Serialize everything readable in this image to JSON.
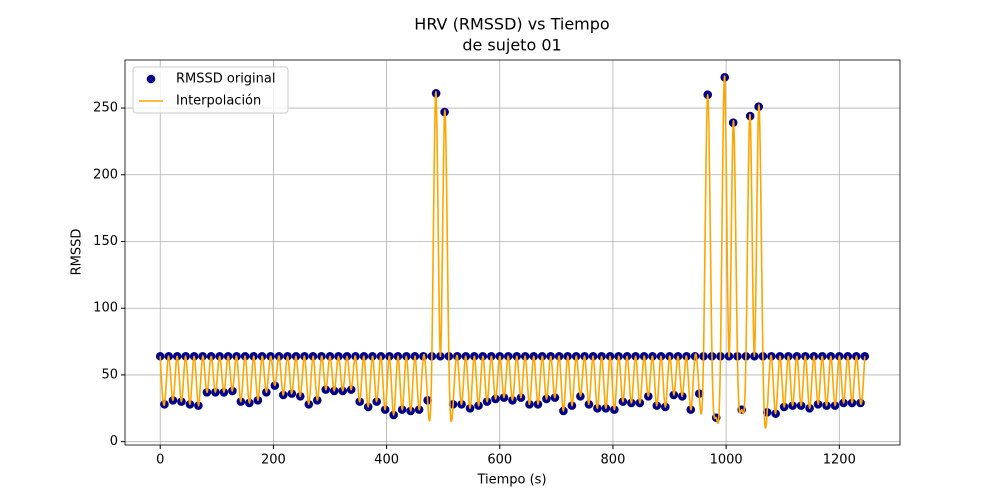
{
  "chart_data": {
    "type": "scatter-spline",
    "title": [
      "HRV (RMSSD) vs Tiempo",
      "de sujeto 01"
    ],
    "x_label": "Tiempo (s)",
    "y_label": "RMSSD",
    "x": [
      0,
      7.5,
      15,
      22.5,
      30,
      37.5,
      45,
      52.5,
      60,
      67.5,
      75,
      82.5,
      90,
      97.5,
      105,
      112.5,
      120,
      127.5,
      135,
      142.5,
      150,
      157.5,
      165,
      172.5,
      180,
      187.5,
      195,
      202.5,
      210,
      217.5,
      225,
      232.5,
      240,
      247.5,
      255,
      262.5,
      270,
      277.5,
      285,
      292.5,
      300,
      307.5,
      315,
      322.5,
      330,
      337.5,
      345,
      352.5,
      360,
      367.5,
      375,
      382.5,
      390,
      397.5,
      405,
      412.5,
      420,
      427.5,
      435,
      442.5,
      450,
      457.5,
      465,
      472.5,
      480,
      487.5,
      495,
      502.5,
      510,
      517.5,
      525,
      532.5,
      540,
      547.5,
      555,
      562.5,
      570,
      577.5,
      585,
      592.5,
      600,
      607.5,
      615,
      622.5,
      630,
      637.5,
      645,
      652.5,
      660,
      667.5,
      675,
      682.5,
      690,
      697.5,
      705,
      712.5,
      720,
      727.5,
      735,
      742.5,
      750,
      757.5,
      765,
      772.5,
      780,
      787.5,
      795,
      802.5,
      810,
      817.5,
      825,
      832.5,
      840,
      847.5,
      855,
      862.5,
      870,
      877.5,
      885,
      892.5,
      900,
      907.5,
      915,
      922.5,
      930,
      937.5,
      945,
      952.5,
      960,
      967.5,
      975,
      982.5,
      990,
      997.5,
      1005,
      1012.5,
      1020,
      1027.5,
      1035,
      1042.5,
      1050,
      1057.5,
      1065,
      1072.5,
      1080,
      1087.5,
      1095,
      1102.5,
      1110,
      1117.5,
      1125,
      1132.5,
      1140,
      1147.5,
      1155,
      1162.5,
      1170,
      1177.5,
      1185,
      1192.5,
      1200,
      1207.5,
      1215,
      1222.5,
      1230,
      1237.5,
      1245
    ],
    "values": [
      64,
      28,
      64,
      31,
      64,
      30,
      64,
      28,
      64,
      27,
      64,
      37,
      64,
      37,
      64,
      37,
      64,
      38,
      64,
      30,
      64,
      29,
      64,
      31,
      64,
      37,
      64,
      42,
      64,
      35,
      64,
      36,
      64,
      34,
      64,
      28,
      64,
      31,
      64,
      39,
      64,
      38,
      64,
      38,
      64,
      39,
      64,
      30,
      64,
      26,
      64,
      30,
      64,
      24,
      64,
      20,
      64,
      24,
      64,
      23,
      64,
      24,
      64,
      31,
      64,
      261,
      64,
      247,
      64,
      28,
      64,
      28,
      64,
      25,
      64,
      27,
      64,
      30,
      64,
      32,
      64,
      33,
      64,
      31,
      64,
      33,
      64,
      28,
      64,
      28,
      64,
      32,
      64,
      33,
      64,
      23,
      64,
      27,
      64,
      34,
      64,
      28,
      64,
      25,
      64,
      25,
      64,
      24,
      64,
      30,
      64,
      29,
      64,
      29,
      64,
      34,
      64,
      27,
      64,
      26,
      64,
      35,
      64,
      34,
      64,
      24,
      64,
      36,
      64,
      260,
      64,
      18,
      64,
      273,
      64,
      239,
      64,
      24,
      64,
      244,
      64,
      251,
      64,
      22,
      64,
      21,
      64,
      26,
      64,
      27,
      64,
      27,
      64,
      25,
      64,
      28,
      64,
      27,
      64,
      27,
      64,
      29,
      64,
      29,
      64,
      29,
      64
    ],
    "series": [
      {
        "name": "RMSSD original",
        "color": "#00008b",
        "marker": "scatter"
      },
      {
        "name": "Interpolación",
        "color": "#ffa500",
        "marker": "spline"
      }
    ],
    "xlim": [
      -62.25,
      1307.25
    ],
    "ylim": [
      -2.5,
      286
    ],
    "xticks": [
      0,
      200,
      400,
      600,
      800,
      1000,
      1200
    ],
    "yticks": [
      0,
      50,
      100,
      150,
      200,
      250
    ],
    "grid": true,
    "legend": "upper left"
  }
}
